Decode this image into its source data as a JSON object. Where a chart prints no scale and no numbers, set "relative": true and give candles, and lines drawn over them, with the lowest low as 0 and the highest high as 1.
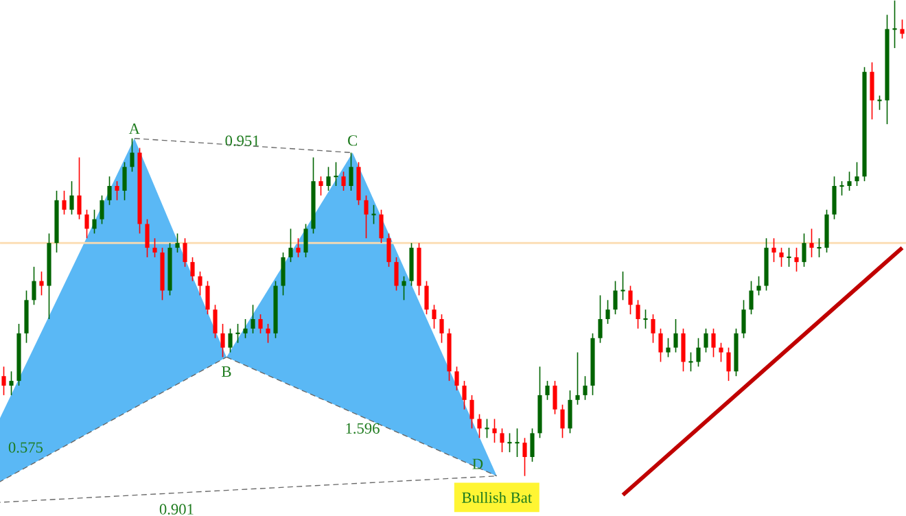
{
  "chart_data": {
    "type": "candlestick",
    "relative": true,
    "categories": [
      null,
      null,
      null,
      null,
      null,
      null,
      null,
      null,
      null,
      null,
      null,
      null,
      null,
      null,
      null,
      null,
      null,
      null,
      null,
      null,
      null,
      null,
      null,
      null,
      null,
      null,
      null,
      null,
      null,
      null,
      null,
      null,
      null,
      null,
      null,
      null,
      null,
      null,
      null,
      null,
      null,
      null,
      null,
      null,
      null,
      null,
      null,
      null,
      null,
      null,
      null,
      null,
      null,
      null,
      null,
      null,
      null,
      null,
      null,
      null,
      null,
      null,
      null,
      null,
      null,
      null,
      null,
      null,
      null,
      null,
      null,
      null,
      null,
      null,
      null,
      null,
      null,
      null,
      null,
      null,
      null,
      null,
      null,
      null,
      null,
      null,
      null,
      null,
      null,
      null,
      null,
      null,
      null,
      null,
      null,
      null,
      null,
      null,
      null,
      null,
      null,
      null,
      null,
      null,
      null,
      null,
      null,
      null,
      null,
      null,
      null,
      null,
      null,
      null,
      null,
      null,
      null,
      null,
      null,
      null
    ],
    "ohlc": [
      [
        0.21,
        0.23,
        0.17,
        0.19
      ],
      [
        0.19,
        0.22,
        0.17,
        0.2
      ],
      [
        0.2,
        0.32,
        0.19,
        0.3
      ],
      [
        0.3,
        0.39,
        0.28,
        0.37
      ],
      [
        0.37,
        0.44,
        0.36,
        0.41
      ],
      [
        0.41,
        0.43,
        0.38,
        0.4
      ],
      [
        0.4,
        0.51,
        0.33,
        0.49
      ],
      [
        0.49,
        0.6,
        0.47,
        0.58
      ],
      [
        0.58,
        0.6,
        0.55,
        0.56
      ],
      [
        0.56,
        0.62,
        0.55,
        0.59
      ],
      [
        0.59,
        0.67,
        0.54,
        0.55
      ],
      [
        0.55,
        0.56,
        0.5,
        0.52
      ],
      [
        0.52,
        0.56,
        0.51,
        0.54
      ],
      [
        0.54,
        0.59,
        0.53,
        0.58
      ],
      [
        0.58,
        0.63,
        0.57,
        0.61
      ],
      [
        0.61,
        0.62,
        0.58,
        0.6
      ],
      [
        0.6,
        0.66,
        0.58,
        0.65
      ],
      [
        0.65,
        0.71,
        0.64,
        0.68
      ],
      [
        0.68,
        0.69,
        0.51,
        0.53
      ],
      [
        0.53,
        0.54,
        0.46,
        0.48
      ],
      [
        0.48,
        0.5,
        0.46,
        0.47
      ],
      [
        0.47,
        0.48,
        0.37,
        0.39
      ],
      [
        0.39,
        0.49,
        0.38,
        0.48
      ],
      [
        0.48,
        0.51,
        0.47,
        0.49
      ],
      [
        0.49,
        0.5,
        0.44,
        0.45
      ],
      [
        0.45,
        0.46,
        0.41,
        0.42
      ],
      [
        0.42,
        0.43,
        0.38,
        0.4
      ],
      [
        0.4,
        0.41,
        0.34,
        0.35
      ],
      [
        0.35,
        0.36,
        0.29,
        0.3
      ],
      [
        0.3,
        0.32,
        0.25,
        0.27
      ],
      [
        0.27,
        0.31,
        0.26,
        0.3
      ],
      [
        0.3,
        0.32,
        0.28,
        0.3
      ],
      [
        0.3,
        0.33,
        0.29,
        0.31
      ],
      [
        0.31,
        0.36,
        0.3,
        0.33
      ],
      [
        0.33,
        0.34,
        0.3,
        0.31
      ],
      [
        0.31,
        0.32,
        0.28,
        0.3
      ],
      [
        0.3,
        0.41,
        0.29,
        0.4
      ],
      [
        0.4,
        0.47,
        0.38,
        0.46
      ],
      [
        0.46,
        0.52,
        0.45,
        0.48
      ],
      [
        0.48,
        0.5,
        0.46,
        0.47
      ],
      [
        0.47,
        0.53,
        0.46,
        0.52
      ],
      [
        0.52,
        0.67,
        0.51,
        0.62
      ],
      [
        0.62,
        0.63,
        0.59,
        0.61
      ],
      [
        0.61,
        0.65,
        0.6,
        0.63
      ],
      [
        0.63,
        0.66,
        0.61,
        0.63
      ],
      [
        0.63,
        0.64,
        0.6,
        0.61
      ],
      [
        0.61,
        0.68,
        0.6,
        0.65
      ],
      [
        0.65,
        0.66,
        0.57,
        0.58
      ],
      [
        0.58,
        0.59,
        0.5,
        0.55
      ],
      [
        0.55,
        0.57,
        0.53,
        0.55
      ],
      [
        0.55,
        0.56,
        0.49,
        0.5
      ],
      [
        0.5,
        0.51,
        0.44,
        0.45
      ],
      [
        0.45,
        0.46,
        0.39,
        0.4
      ],
      [
        0.4,
        0.42,
        0.37,
        0.41
      ],
      [
        0.41,
        0.49,
        0.4,
        0.48
      ],
      [
        0.48,
        0.49,
        0.38,
        0.4
      ],
      [
        0.4,
        0.41,
        0.34,
        0.35
      ],
      [
        0.35,
        0.36,
        0.31,
        0.33
      ],
      [
        0.33,
        0.34,
        0.28,
        0.3
      ],
      [
        0.3,
        0.31,
        0.2,
        0.22
      ],
      [
        0.22,
        0.23,
        0.18,
        0.19
      ],
      [
        0.19,
        0.2,
        0.14,
        0.16
      ],
      [
        0.16,
        0.17,
        0.1,
        0.12
      ],
      [
        0.12,
        0.13,
        0.08,
        0.1
      ],
      [
        0.1,
        0.12,
        0.08,
        0.1
      ],
      [
        0.1,
        0.12,
        0.07,
        0.09
      ],
      [
        0.09,
        0.1,
        0.05,
        0.07
      ],
      [
        0.07,
        0.09,
        0.05,
        0.07
      ],
      [
        0.07,
        0.1,
        0.04,
        0.07
      ],
      [
        0.07,
        0.08,
        0,
        0.04
      ],
      [
        0.04,
        0.1,
        0.03,
        0.09
      ],
      [
        0.09,
        0.23,
        0.08,
        0.17
      ],
      [
        0.17,
        0.2,
        0.16,
        0.19
      ],
      [
        0.19,
        0.2,
        0.13,
        0.14
      ],
      [
        0.14,
        0.15,
        0.08,
        0.1
      ],
      [
        0.1,
        0.18,
        0.09,
        0.16
      ],
      [
        0.16,
        0.26,
        0.15,
        0.17
      ],
      [
        0.17,
        0.21,
        0.16,
        0.19
      ],
      [
        0.19,
        0.3,
        0.17,
        0.29
      ],
      [
        0.29,
        0.38,
        0.28,
        0.33
      ],
      [
        0.33,
        0.37,
        0.32,
        0.35
      ],
      [
        0.35,
        0.41,
        0.34,
        0.39
      ],
      [
        0.39,
        0.43,
        0.37,
        0.39
      ],
      [
        0.39,
        0.4,
        0.34,
        0.36
      ],
      [
        0.36,
        0.37,
        0.31,
        0.33
      ],
      [
        0.33,
        0.35,
        0.31,
        0.33
      ],
      [
        0.33,
        0.34,
        0.28,
        0.3
      ],
      [
        0.3,
        0.31,
        0.24,
        0.26
      ],
      [
        0.26,
        0.29,
        0.25,
        0.27
      ],
      [
        0.27,
        0.33,
        0.26,
        0.3
      ],
      [
        0.3,
        0.31,
        0.22,
        0.24
      ],
      [
        0.24,
        0.26,
        0.22,
        0.24
      ],
      [
        0.24,
        0.29,
        0.23,
        0.27
      ],
      [
        0.27,
        0.31,
        0.26,
        0.3
      ],
      [
        0.3,
        0.31,
        0.25,
        0.27
      ],
      [
        0.27,
        0.28,
        0.24,
        0.26
      ],
      [
        0.26,
        0.27,
        0.2,
        0.22
      ],
      [
        0.22,
        0.31,
        0.21,
        0.3
      ],
      [
        0.3,
        0.37,
        0.29,
        0.35
      ],
      [
        0.35,
        0.41,
        0.34,
        0.39
      ],
      [
        0.39,
        0.42,
        0.38,
        0.4
      ],
      [
        0.4,
        0.5,
        0.39,
        0.48
      ],
      [
        0.48,
        0.5,
        0.45,
        0.47
      ],
      [
        0.47,
        0.48,
        0.44,
        0.46
      ],
      [
        0.46,
        0.48,
        0.44,
        0.46
      ],
      [
        0.46,
        0.48,
        0.43,
        0.45
      ],
      [
        0.45,
        0.51,
        0.44,
        0.49
      ],
      [
        0.49,
        0.52,
        0.46,
        0.48
      ],
      [
        0.48,
        0.5,
        0.46,
        0.48
      ],
      [
        0.48,
        0.56,
        0.47,
        0.55
      ],
      [
        0.55,
        0.63,
        0.54,
        0.61
      ],
      [
        0.61,
        0.62,
        0.59,
        0.61
      ],
      [
        0.61,
        0.64,
        0.6,
        0.62
      ],
      [
        0.62,
        0.66,
        0.61,
        0.63
      ],
      [
        0.63,
        0.86,
        0.62,
        0.85
      ],
      [
        0.85,
        0.87,
        0.75,
        0.79
      ],
      [
        0.79,
        0.8,
        0.77,
        0.79
      ],
      [
        0.79,
        0.97,
        0.74,
        0.94
      ],
      [
        0.94,
        1,
        0.9,
        0.94
      ],
      [
        0.94,
        0.96,
        0.92,
        0.93
      ]
    ],
    "colors": [
      "#ff0000",
      "#006400",
      "#006400",
      "#006400",
      "#006400",
      "#ff0000",
      "#006400",
      "#006400",
      "#ff0000",
      "#006400",
      "#ff0000",
      "#ff0000",
      "#006400",
      "#006400",
      "#006400",
      "#ff0000",
      "#006400",
      "#006400",
      "#ff0000",
      "#ff0000",
      "#ff0000",
      "#ff0000",
      "#006400",
      "#006400",
      "#ff0000",
      "#ff0000",
      "#ff0000",
      "#ff0000",
      "#ff0000",
      "#ff0000",
      "#006400",
      "#006400",
      "#006400",
      "#006400",
      "#ff0000",
      "#ff0000",
      "#006400",
      "#006400",
      "#006400",
      "#ff0000",
      "#006400",
      "#006400",
      "#ff0000",
      "#006400",
      "#006400",
      "#ff0000",
      "#006400",
      "#ff0000",
      "#ff0000",
      "#006400",
      "#ff0000",
      "#ff0000",
      "#ff0000",
      "#006400",
      "#006400",
      "#ff0000",
      "#ff0000",
      "#ff0000",
      "#ff0000",
      "#ff0000",
      "#ff0000",
      "#ff0000",
      "#ff0000",
      "#ff0000",
      "#006400",
      "#ff0000",
      "#ff0000",
      "#006400",
      "#006400",
      "#ff0000",
      "#006400",
      "#006400",
      "#006400",
      "#ff0000",
      "#ff0000",
      "#006400",
      "#006400",
      "#006400",
      "#006400",
      "#006400",
      "#006400",
      "#006400",
      "#006400",
      "#ff0000",
      "#ff0000",
      "#006400",
      "#ff0000",
      "#ff0000",
      "#006400",
      "#006400",
      "#ff0000",
      "#006400",
      "#006400",
      "#006400",
      "#ff0000",
      "#ff0000",
      "#ff0000",
      "#006400",
      "#006400",
      "#006400",
      "#006400",
      "#006400",
      "#ff0000",
      "#ff0000",
      "#006400",
      "#ff0000",
      "#006400",
      "#ff0000",
      "#006400",
      "#006400",
      "#006400",
      "#006400",
      "#006400",
      "#006400",
      "#006400",
      "#ff0000",
      "#006400",
      "#006400",
      "#006400",
      "#ff0000"
    ],
    "series": [
      {
        "type": "line",
        "color": "#c00000",
        "values": [
          null,
          null,
          null,
          null,
          null,
          null,
          null,
          null,
          null,
          null,
          null,
          null,
          null,
          null,
          null,
          null,
          null,
          null,
          null,
          null,
          null,
          null,
          null,
          null,
          null,
          null,
          null,
          null,
          null,
          null,
          null,
          null,
          null,
          null,
          null,
          null,
          null,
          null,
          null,
          null,
          null,
          null,
          null,
          null,
          null,
          null,
          null,
          null,
          null,
          null,
          null,
          null,
          null,
          null,
          null,
          null,
          null,
          null,
          null,
          null,
          null,
          null,
          null,
          null,
          null,
          null,
          null,
          null,
          null,
          null,
          null,
          null,
          null,
          null,
          null,
          null,
          null,
          null,
          null,
          null,
          null,
          null,
          -0.04,
          null,
          null,
          null,
          null,
          null,
          null,
          null,
          null,
          null,
          null,
          null,
          null,
          null,
          null,
          null,
          null,
          null,
          null,
          null,
          null,
          null,
          null,
          null,
          null,
          null,
          null,
          null,
          null,
          null,
          null,
          null,
          null,
          null,
          null,
          null,
          null,
          0.48
        ]
      }
    ],
    "ref_lines": [
      {
        "axis": "y",
        "value": 0.49,
        "color": "#fcdcb0"
      }
    ],
    "annotations": [
      "A",
      "0.951",
      "C",
      "B",
      "0.575",
      "1.596",
      "D",
      "0.901",
      "Bullish Bat"
    ]
  }
}
